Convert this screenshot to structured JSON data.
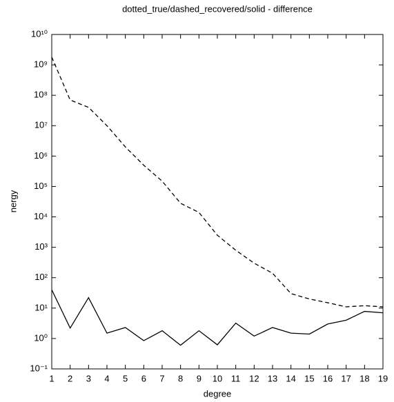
{
  "chart_data": {
    "type": "line",
    "title": "dotted_true/dashed_recovered/solid - difference",
    "x_label": "degree",
    "y_label": "nergy",
    "x": [
      1,
      2,
      3,
      4,
      5,
      6,
      7,
      8,
      9,
      10,
      11,
      12,
      13,
      14,
      15,
      16,
      17,
      18,
      19
    ],
    "series": [
      {
        "color": "#000000",
        "style": "dashed",
        "values": [
          1800000000,
          70000000,
          40000000,
          10000000,
          2000000,
          500000,
          150000,
          28000,
          14000,
          2500,
          800,
          300,
          140,
          30,
          20,
          15,
          11,
          12,
          11
        ]
      },
      {
        "color": "#000000",
        "style": "solid",
        "values": [
          40,
          2.2,
          22,
          1.5,
          2.3,
          0.85,
          1.8,
          0.6,
          1.8,
          0.62,
          3.2,
          1.2,
          2.3,
          1.5,
          1.4,
          3,
          4,
          7.8,
          7
        ]
      }
    ],
    "xlim": [
      1,
      19
    ],
    "xticks": [
      1,
      2,
      3,
      4,
      5,
      6,
      7,
      8,
      9,
      10,
      11,
      12,
      13,
      14,
      15,
      16,
      17,
      18,
      19
    ],
    "ylim": [
      0.1,
      10000000000
    ],
    "log_y": true,
    "yticks": [
      {
        "value": 0.1,
        "label": "10⁻¹"
      },
      {
        "value": 1,
        "label": "10⁰"
      },
      {
        "value": 10,
        "label": "10¹"
      },
      {
        "value": 100,
        "label": "10²"
      },
      {
        "value": 1000,
        "label": "10³"
      },
      {
        "value": 10000,
        "label": "10⁴"
      },
      {
        "value": 100000,
        "label": "10⁵"
      },
      {
        "value": 1000000,
        "label": "10⁶"
      },
      {
        "value": 10000000,
        "label": "10⁷"
      },
      {
        "value": 100000000,
        "label": "10⁸"
      },
      {
        "value": 1000000000,
        "label": "10⁹"
      },
      {
        "value": 10000000000,
        "label": "10¹⁰"
      }
    ]
  }
}
